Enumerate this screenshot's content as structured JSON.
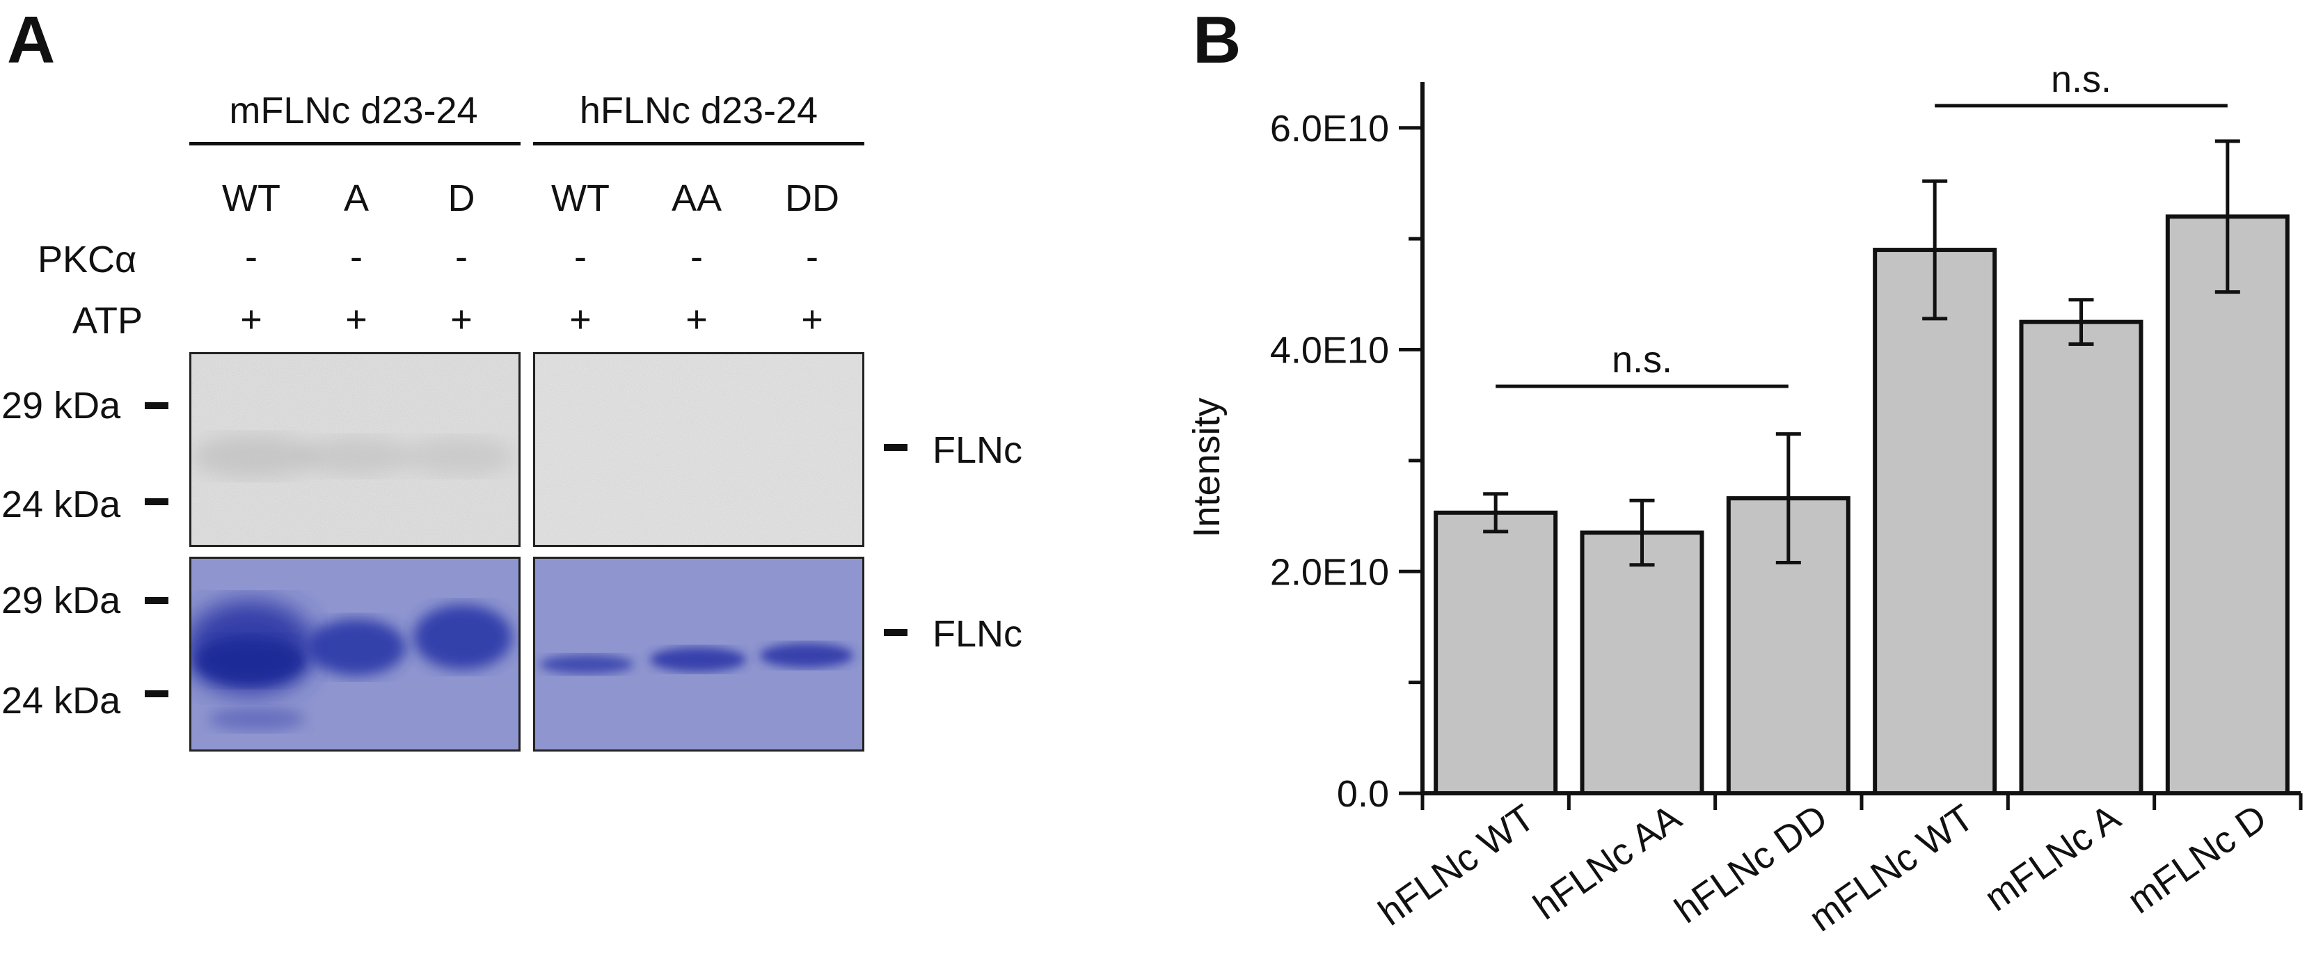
{
  "panelA": {
    "letter": "A",
    "groups": [
      "mFLNc d23-24",
      "hFLNc d23-24"
    ],
    "lanes": [
      "WT",
      "A",
      "D",
      "WT",
      "AA",
      "DD"
    ],
    "row_labels": {
      "pkc": "PKCα",
      "atp": "ATP"
    },
    "pkc_signs": [
      "-",
      "-",
      "-",
      "-",
      "-",
      "-"
    ],
    "atp_signs": [
      "+",
      "+",
      "+",
      "+",
      "+",
      "+"
    ],
    "markers_top": [
      "29 kDa",
      "24 kDa"
    ],
    "markers_bottom": [
      "29 kDa",
      "24 kDa"
    ],
    "band_label_top": "FLNc",
    "band_label_bottom": "FLNc",
    "colors": {
      "autorad_bg": "#e4e4e4",
      "coomassie_bg": "#8f95cf",
      "band": "#2b35a5"
    }
  },
  "panelB": {
    "letter": "B",
    "significance": [
      "n.s.",
      "n.s."
    ]
  },
  "chart_data": {
    "type": "bar",
    "categories": [
      "hFLNc WT",
      "hFLNc AA",
      "hFLNc DD",
      "mFLNc WT",
      "mFLNc A",
      "mFLNc D"
    ],
    "values": [
      25300000000.0,
      23500000000.0,
      26600000000.0,
      49000000000.0,
      42500000000.0,
      52000000000.0
    ],
    "errors": [
      1700000000.0,
      2900000000.0,
      5800000000.0,
      6200000000.0,
      2000000000.0,
      6800000000.0
    ],
    "ylabel": "Intensity",
    "ylim": [
      0,
      64000000000.0
    ],
    "yticks": [
      0,
      20000000000.0,
      40000000000.0,
      60000000000.0
    ],
    "ytick_labels": [
      "0.0",
      "2.0E10",
      "4.0E10",
      "6.0E10"
    ],
    "annotations": [
      {
        "text": "n.s.",
        "from": "hFLNc WT",
        "to": "hFLNc DD",
        "y": 36700000000.0
      },
      {
        "text": "n.s.",
        "from": "mFLNc WT",
        "to": "mFLNc D",
        "y": 62000000000.0
      }
    ],
    "bar_color": "#c3c3c3",
    "grid": false
  }
}
